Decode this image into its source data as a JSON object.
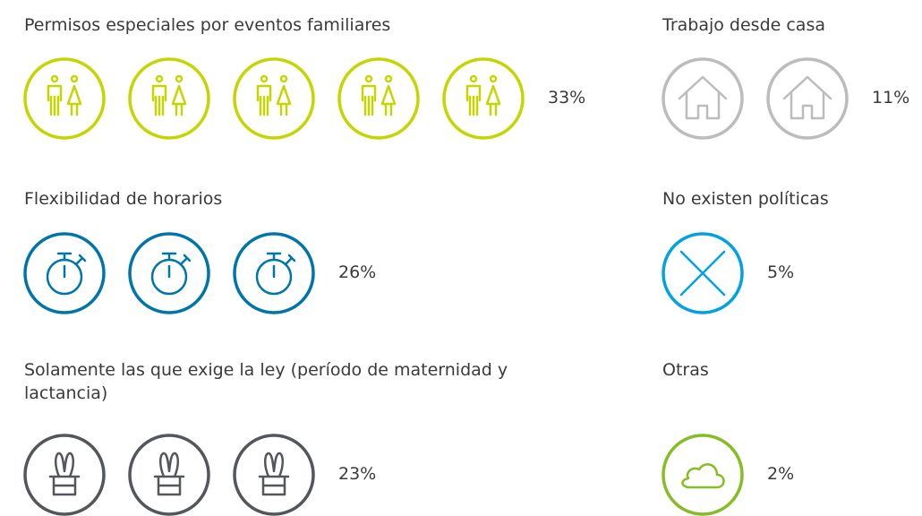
{
  "chart_data": {
    "type": "pictogram",
    "categories": [
      "Permisos especiales por eventos familiares",
      "Flexibilidad de horarios",
      "Solamente las que  exige la ley (período de maternidad y lactancia)",
      "Trabajo desde casa",
      "No existen políticas",
      "Otras"
    ],
    "values": [
      33,
      26,
      23,
      11,
      5,
      2
    ],
    "value_labels": [
      "33%",
      "26%",
      "23%",
      "11%",
      "5%",
      "2%"
    ],
    "icons": [
      5,
      3,
      3,
      2,
      1,
      1
    ],
    "colors": [
      "#c4d600",
      "#0076a8",
      "#53565a",
      "#bbbcbc",
      "#00a3e0",
      "#86bc25"
    ]
  }
}
